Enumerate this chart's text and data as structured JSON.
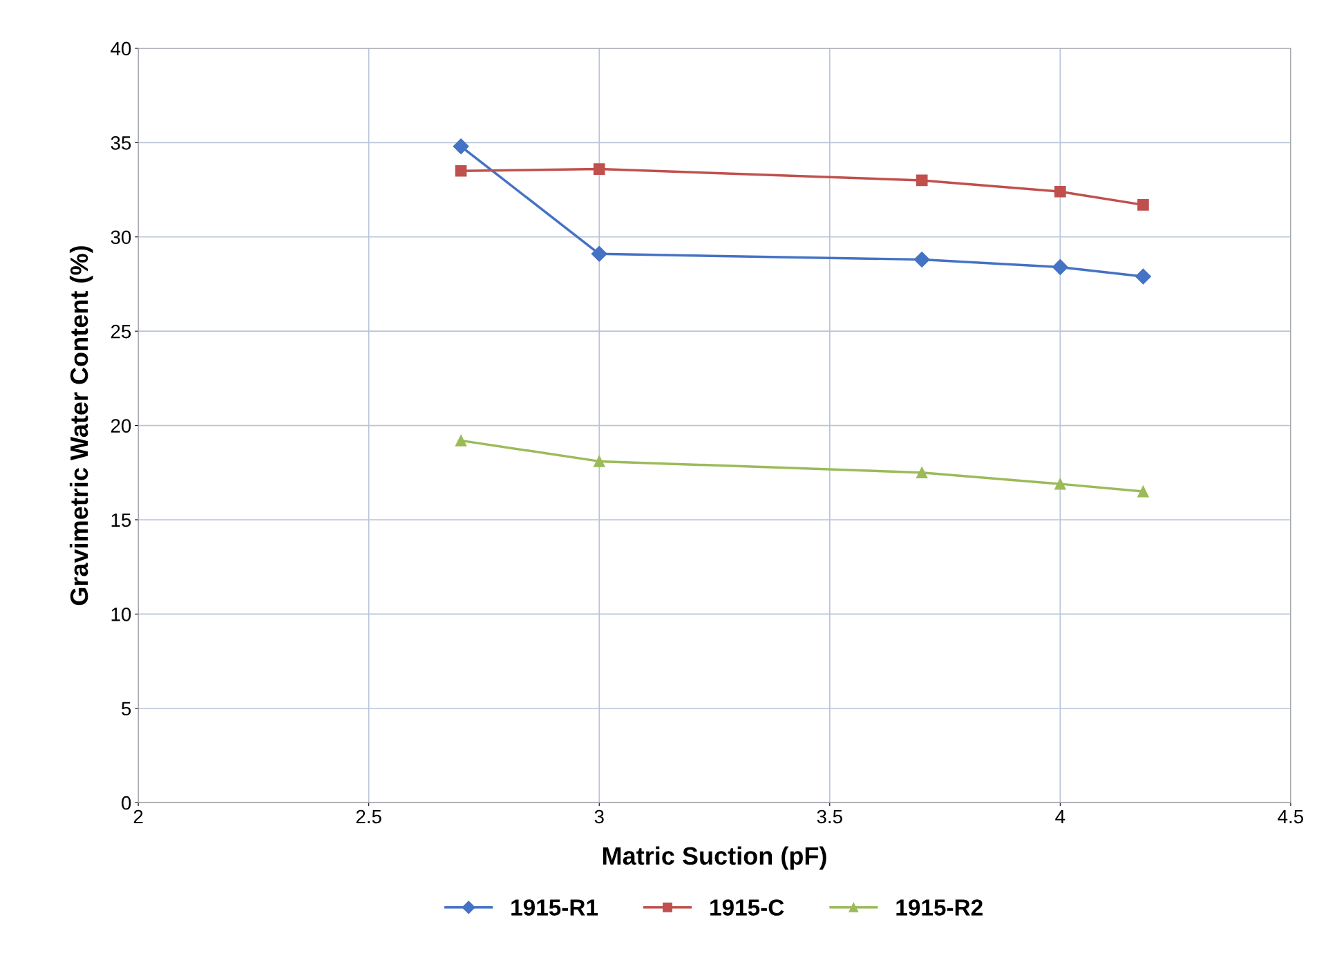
{
  "chart_data": {
    "type": "line",
    "xlabel": "Matric Suction (pF)",
    "ylabel": "Gravimetric Water Content (%)",
    "x": [
      2.7,
      3.0,
      3.7,
      4.0,
      4.18
    ],
    "series": [
      {
        "name": "1915-R1",
        "color": "#4472c4",
        "marker": "diamond",
        "values": [
          34.8,
          29.1,
          28.8,
          28.4,
          27.9
        ]
      },
      {
        "name": "1915-C",
        "color": "#c0504d",
        "marker": "square",
        "values": [
          33.5,
          33.6,
          33.0,
          32.4,
          31.7
        ]
      },
      {
        "name": "1915-R2",
        "color": "#9bbb59",
        "marker": "triangle",
        "values": [
          19.2,
          18.1,
          17.5,
          16.9,
          16.5
        ]
      }
    ],
    "xlim": [
      2,
      4.5
    ],
    "xticks": [
      2,
      2.5,
      3,
      3.5,
      4,
      4.5
    ],
    "ylim": [
      0,
      40
    ],
    "yticks": [
      0,
      5,
      10,
      15,
      20,
      25,
      30,
      35,
      40
    ],
    "grid": true,
    "legend": "bottom",
    "line_style": "solid"
  }
}
